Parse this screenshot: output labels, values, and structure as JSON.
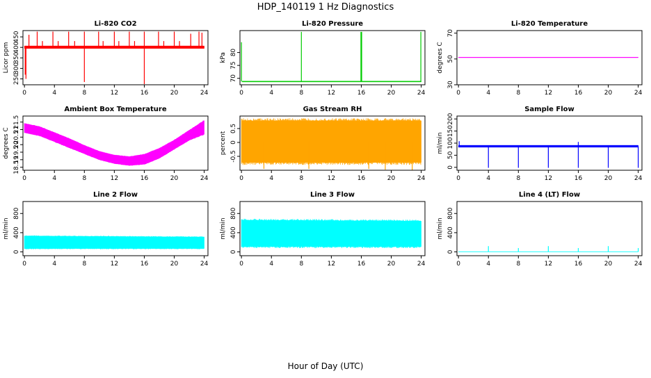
{
  "figure": {
    "title": "HDP_140119  1 Hz Diagnostics",
    "xlabel": "Hour of Day (UTC)"
  },
  "chart_data": [
    {
      "type": "line",
      "title": "Li-820 CO2",
      "ylabel": "Licor ppm",
      "color": "#ff0000",
      "x_ticks": [
        0,
        4,
        8,
        12,
        16,
        20,
        24
      ],
      "xlim": [
        -0.2,
        24.5
      ],
      "y_ticks": [
        250,
        300,
        350,
        400,
        450
      ],
      "ylim": [
        222,
        480
      ],
      "band": {
        "x": [
          0,
          24
        ],
        "lower": [
          395,
          395
        ],
        "upper": [
          407,
          407
        ]
      },
      "spikes": [
        {
          "x": 0.1,
          "y": 270
        },
        {
          "x": 0.2,
          "y": 250
        },
        {
          "x": 0.6,
          "y": 460
        },
        {
          "x": 1.7,
          "y": 475
        },
        {
          "x": 2.4,
          "y": 430
        },
        {
          "x": 3.8,
          "y": 475
        },
        {
          "x": 4.5,
          "y": 430
        },
        {
          "x": 5.9,
          "y": 475
        },
        {
          "x": 6.7,
          "y": 430
        },
        {
          "x": 8.0,
          "y": 475
        },
        {
          "x": 8.0,
          "y": 235
        },
        {
          "x": 9.9,
          "y": 475
        },
        {
          "x": 10.5,
          "y": 430
        },
        {
          "x": 12.0,
          "y": 475
        },
        {
          "x": 12.6,
          "y": 430
        },
        {
          "x": 14.0,
          "y": 475
        },
        {
          "x": 14.7,
          "y": 430
        },
        {
          "x": 16.0,
          "y": 475
        },
        {
          "x": 16.0,
          "y": 225
        },
        {
          "x": 17.9,
          "y": 475
        },
        {
          "x": 18.6,
          "y": 430
        },
        {
          "x": 20.0,
          "y": 475
        },
        {
          "x": 20.7,
          "y": 430
        },
        {
          "x": 22.2,
          "y": 465
        },
        {
          "x": 23.3,
          "y": 475
        },
        {
          "x": 23.7,
          "y": 470
        }
      ]
    },
    {
      "type": "line",
      "title": "Li-820 Pressure",
      "ylabel": "kPa",
      "color": "#00cc00",
      "x_ticks": [
        0,
        4,
        8,
        12,
        16,
        20,
        24
      ],
      "xlim": [
        -0.2,
        24.5
      ],
      "y_ticks": [
        70,
        75,
        80
      ],
      "ylim": [
        67.5,
        88.5
      ],
      "band": {
        "x": [
          0.1,
          24
        ],
        "lower": [
          68.6,
          68.6
        ],
        "upper": [
          68.9,
          68.9
        ]
      },
      "spikes": [
        {
          "x": 0.0,
          "y": 84
        },
        {
          "x": 8.0,
          "y": 88
        },
        {
          "x": 15.95,
          "y": 88
        },
        {
          "x": 16.05,
          "y": 88
        },
        {
          "x": 23.95,
          "y": 88
        }
      ]
    },
    {
      "type": "line",
      "title": "Li-820 Temperature",
      "ylabel": "degrees C",
      "color": "#ff00ff",
      "x_ticks": [
        0,
        4,
        8,
        12,
        16,
        20,
        24
      ],
      "xlim": [
        -0.2,
        24.5
      ],
      "y_ticks": [
        30,
        50,
        70
      ],
      "ylim": [
        30,
        72
      ],
      "band": {
        "x": [
          0,
          24
        ],
        "lower": [
          51,
          51
        ],
        "upper": [
          51.4,
          51.4
        ]
      },
      "spikes": []
    },
    {
      "type": "line",
      "title": "Ambient Box Temperature",
      "ylabel": "degrees C",
      "color": "#ff00ff",
      "x_ticks": [
        0,
        4,
        8,
        12,
        16,
        20,
        24
      ],
      "xlim": [
        -0.2,
        24.5
      ],
      "y_ticks": [
        18.5,
        19.0,
        19.5,
        20.0,
        20.5,
        21.0,
        21.5
      ],
      "ylim": [
        18.3,
        21.9
      ],
      "band": {
        "x": [
          0,
          2,
          4,
          6,
          8,
          10,
          12,
          14,
          16,
          18,
          20,
          22,
          24
        ],
        "lower": [
          20.8,
          20.6,
          20.2,
          19.8,
          19.4,
          19.0,
          18.75,
          18.62,
          18.7,
          19.1,
          19.7,
          20.3,
          20.7
        ],
        "upper": [
          21.4,
          21.2,
          20.8,
          20.4,
          19.95,
          19.55,
          19.3,
          19.2,
          19.35,
          19.75,
          20.3,
          20.95,
          21.6
        ]
      },
      "spikes": []
    },
    {
      "type": "line",
      "title": "Gas Stream RH",
      "ylabel": "percent",
      "color": "#ffa500",
      "x_ticks": [
        0,
        4,
        8,
        12,
        16,
        20,
        24
      ],
      "xlim": [
        -0.2,
        24.5
      ],
      "y_ticks": [
        -0.5,
        0.0,
        0.5
      ],
      "ylim": [
        -1.0,
        0.95
      ],
      "band": {
        "x": [
          0,
          24
        ],
        "lower": [
          -0.72,
          -0.72
        ],
        "upper": [
          0.78,
          0.78
        ]
      },
      "spikes": [
        {
          "x": 3.0,
          "y": -0.95
        },
        {
          "x": 9.0,
          "y": -0.95
        },
        {
          "x": 17.0,
          "y": -0.95
        },
        {
          "x": 19.2,
          "y": -0.98
        },
        {
          "x": 22.8,
          "y": -1.0
        }
      ]
    },
    {
      "type": "line",
      "title": "Sample Flow",
      "ylabel": "ml/min",
      "color": "#0000ff",
      "x_ticks": [
        0,
        4,
        8,
        12,
        16,
        20,
        24
      ],
      "xlim": [
        -0.2,
        24.5
      ],
      "y_ticks": [
        0,
        50,
        100,
        150,
        200
      ],
      "ylim": [
        -12,
        212
      ],
      "band": {
        "x": [
          0,
          24
        ],
        "lower": [
          83,
          83
        ],
        "upper": [
          91,
          91
        ]
      },
      "spikes": [
        {
          "x": 0.1,
          "y": 108
        },
        {
          "x": 4.0,
          "y": -2
        },
        {
          "x": 8.0,
          "y": -2
        },
        {
          "x": 12.0,
          "y": -2
        },
        {
          "x": 16.0,
          "y": -2
        },
        {
          "x": 16.0,
          "y": 105
        },
        {
          "x": 20.0,
          "y": -2
        },
        {
          "x": 24.0,
          "y": -2
        }
      ]
    },
    {
      "type": "line",
      "title": "Line 2 Flow",
      "ylabel": "ml/min",
      "color": "#00ffff",
      "x_ticks": [
        0,
        4,
        8,
        12,
        16,
        20,
        24
      ],
      "xlim": [
        -0.2,
        24.5
      ],
      "y_ticks": [
        0,
        400,
        800
      ],
      "ylim": [
        -80,
        1050
      ],
      "band": {
        "x": [
          0,
          24
        ],
        "lower": [
          70,
          70
        ],
        "upper": [
          330,
          310
        ]
      },
      "spikes": []
    },
    {
      "type": "line",
      "title": "Line 3 Flow",
      "ylabel": "ml/min",
      "color": "#00ffff",
      "x_ticks": [
        0,
        4,
        8,
        12,
        16,
        20,
        24
      ],
      "xlim": [
        -0.2,
        24.5
      ],
      "y_ticks": [
        0,
        400,
        800
      ],
      "ylim": [
        -80,
        1050
      ],
      "band": {
        "x": [
          0,
          24
        ],
        "lower": [
          110,
          110
        ],
        "upper": [
          660,
          640
        ]
      },
      "spikes": []
    },
    {
      "type": "line",
      "title": "Line 4 (LT) Flow",
      "ylabel": "ml/min",
      "color": "#00ffff",
      "x_ticks": [
        0,
        4,
        8,
        12,
        16,
        20,
        24
      ],
      "xlim": [
        -0.2,
        24.5
      ],
      "y_ticks": [
        0,
        400,
        800
      ],
      "ylim": [
        -80,
        1050
      ],
      "band": {
        "x": [
          0,
          24
        ],
        "lower": [
          0,
          0
        ],
        "upper": [
          6,
          6
        ]
      },
      "spikes": [
        {
          "x": 4.0,
          "y": 120
        },
        {
          "x": 8.0,
          "y": 80
        },
        {
          "x": 12.0,
          "y": 120
        },
        {
          "x": 16.0,
          "y": 80
        },
        {
          "x": 20.0,
          "y": 120
        },
        {
          "x": 24.0,
          "y": 80
        }
      ]
    }
  ]
}
